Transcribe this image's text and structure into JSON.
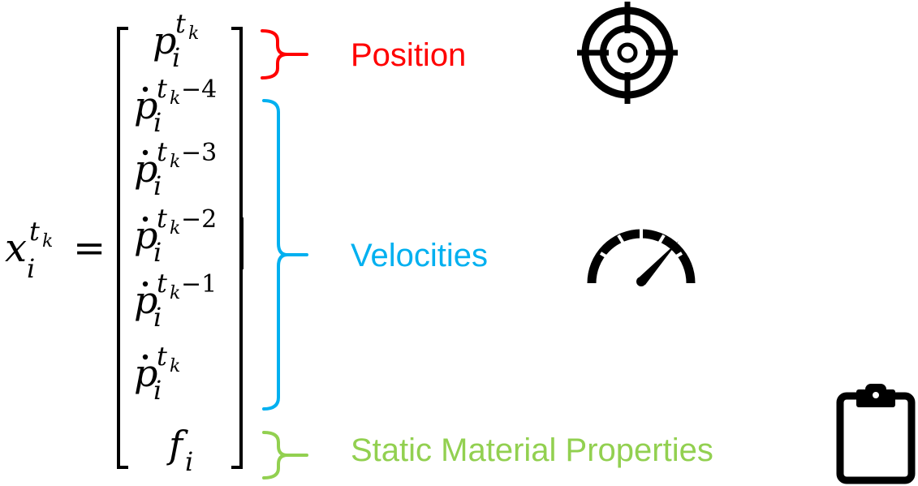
{
  "lhs": {
    "base": "x",
    "sub": "i",
    "sup_base": "t",
    "sup_sub": "k",
    "equals": "="
  },
  "vector_rows": [
    {
      "dot": false,
      "base": "p",
      "sub": "i",
      "sup_base": "t",
      "sup_sub": "k",
      "sup_suffix": ""
    },
    {
      "dot": true,
      "base": "p",
      "sub": "i",
      "sup_base": "t",
      "sup_sub": "k",
      "sup_suffix": "−4"
    },
    {
      "dot": true,
      "base": "p",
      "sub": "i",
      "sup_base": "t",
      "sup_sub": "k",
      "sup_suffix": "−3"
    },
    {
      "dot": true,
      "base": "p",
      "sub": "i",
      "sup_base": "t",
      "sup_sub": "k",
      "sup_suffix": "−2"
    },
    {
      "dot": true,
      "base": "p",
      "sub": "i",
      "sup_base": "t",
      "sup_sub": "k",
      "sup_suffix": "−1"
    },
    {
      "dot": true,
      "base": "p",
      "sub": "i",
      "sup_base": "t",
      "sup_sub": "k",
      "sup_suffix": ""
    },
    {
      "dot": false,
      "base": "f",
      "sub": "i",
      "sup_base": "",
      "sup_sub": "",
      "sup_suffix": ""
    }
  ],
  "groups": {
    "position": {
      "label": "Position",
      "color": "#ff0000",
      "icon": "target-icon"
    },
    "velocities": {
      "label": "Velocities",
      "color": "#00b0f0",
      "icon": "speedometer-icon"
    },
    "static": {
      "label": "Static Material Properties",
      "color": "#92d050",
      "icon": "clipboard-icon"
    }
  }
}
